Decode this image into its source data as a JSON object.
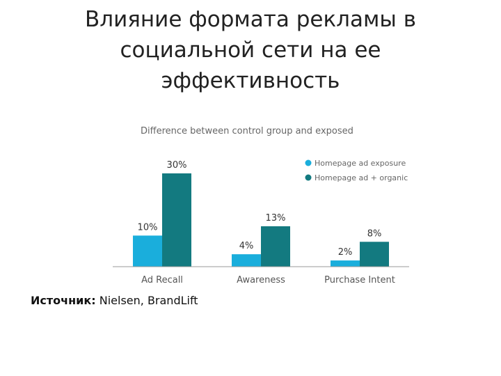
{
  "slide": {
    "title": "Влияние формата рекламы в\nсоциальной сети на ее\nэффективность",
    "source_label": "Источник:",
    "source_value": " Nielsen, BrandLift"
  },
  "chart_data": {
    "type": "bar",
    "title": "Difference between control group and exposed",
    "categories": [
      "Ad Recall",
      "Awareness",
      "Purchase Intent"
    ],
    "series": [
      {
        "name": "Homepage ad exposure",
        "values": [
          10,
          4,
          2
        ],
        "color": "#1aaedc"
      },
      {
        "name": "Homepage ad + organic",
        "values": [
          30,
          13,
          8
        ],
        "color": "#137a80"
      }
    ],
    "value_labels": [
      [
        "10%",
        "4%",
        "2%"
      ],
      [
        "30%",
        "13%",
        "8%"
      ]
    ],
    "unit": "%",
    "ylim": [
      0,
      30
    ],
    "grid": false,
    "legend": "top-right"
  }
}
